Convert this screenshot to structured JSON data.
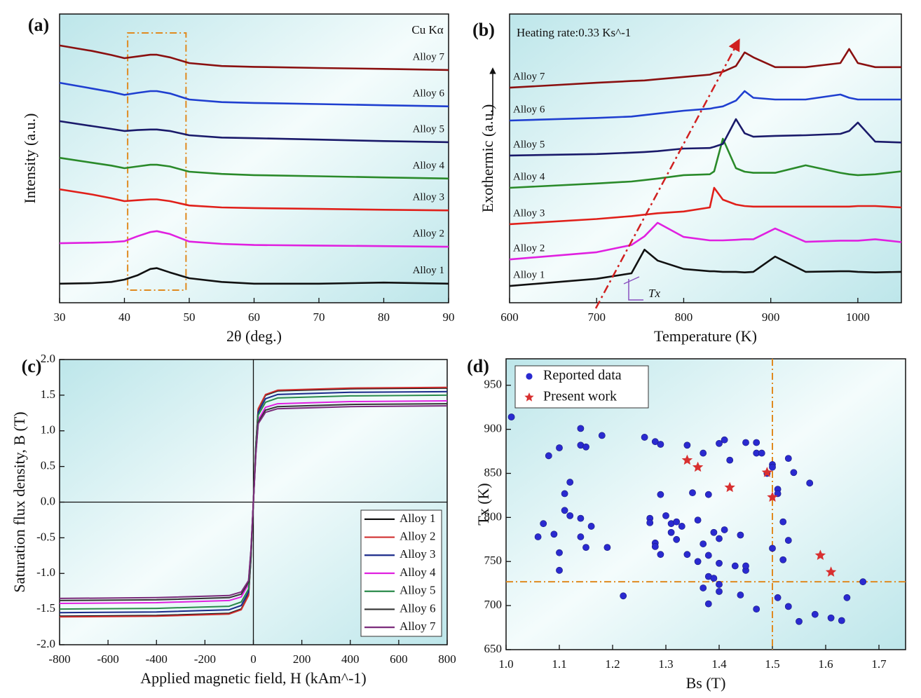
{
  "chart_data": [
    {
      "type": "line",
      "panel": "(a)",
      "xlabel": "2θ (deg.)",
      "ylabel": "Intensity (a.u.)",
      "annotation": "Cu Kα",
      "x": [
        30,
        35,
        38,
        40,
        42,
        44,
        45,
        47,
        50,
        55,
        60,
        70,
        80,
        90
      ],
      "xlim": [
        30,
        90
      ],
      "xticks": [
        30,
        40,
        50,
        60,
        70,
        80,
        90
      ],
      "ylim": [
        0,
        10
      ],
      "highlight_x": [
        40.5,
        49.5
      ],
      "series": [
        {
          "name": "Alloy 1",
          "color": "#111111",
          "values": [
            0.66,
            0.68,
            0.72,
            0.8,
            0.95,
            1.17,
            1.2,
            1.05,
            0.85,
            0.72,
            0.66,
            0.66,
            0.7,
            0.66
          ]
        },
        {
          "name": "Alloy 2",
          "color": "#e020e0",
          "values": [
            2.06,
            2.08,
            2.1,
            2.13,
            2.3,
            2.45,
            2.48,
            2.38,
            2.12,
            2.04,
            2.0,
            1.98,
            1.96,
            1.94
          ]
        },
        {
          "name": "Alloy 3",
          "color": "#e0201a",
          "values": [
            3.93,
            3.75,
            3.62,
            3.52,
            3.55,
            3.58,
            3.58,
            3.52,
            3.37,
            3.3,
            3.28,
            3.25,
            3.22,
            3.2
          ]
        },
        {
          "name": "Alloy 4",
          "color": "#2a8a2a",
          "values": [
            5.02,
            4.85,
            4.75,
            4.66,
            4.72,
            4.78,
            4.78,
            4.72,
            4.54,
            4.46,
            4.42,
            4.38,
            4.34,
            4.3
          ]
        },
        {
          "name": "Alloy 5",
          "color": "#1a1a6a",
          "values": [
            6.29,
            6.12,
            6.02,
            5.95,
            5.98,
            6.0,
            6.0,
            5.95,
            5.8,
            5.72,
            5.7,
            5.65,
            5.6,
            5.56
          ]
        },
        {
          "name": "Alloy 6",
          "color": "#1f3fd0",
          "values": [
            7.62,
            7.42,
            7.3,
            7.2,
            7.27,
            7.33,
            7.33,
            7.25,
            7.04,
            6.95,
            6.92,
            6.88,
            6.84,
            6.8
          ]
        },
        {
          "name": "Alloy 7",
          "color": "#8a1010",
          "values": [
            8.91,
            8.72,
            8.58,
            8.47,
            8.53,
            8.59,
            8.59,
            8.5,
            8.3,
            8.2,
            8.17,
            8.13,
            8.1,
            8.06
          ]
        }
      ]
    },
    {
      "type": "line",
      "panel": "(b)",
      "xlabel": "Temperature (K)",
      "ylabel": "Exothermic (a.u.)",
      "annotation": "Heating rate:0.33 Ks^-1",
      "marker_label": "Tx",
      "x": [
        600,
        700,
        740,
        755,
        770,
        800,
        830,
        835,
        845,
        860,
        870,
        880,
        905,
        940,
        980,
        990,
        1000,
        1020,
        1050
      ],
      "xlim": [
        600,
        1050
      ],
      "xticks": [
        600,
        700,
        800,
        900,
        1000
      ],
      "ylim": [
        0,
        10
      ],
      "series": [
        {
          "name": "Alloy 1",
          "color": "#111111",
          "values": [
            0.58,
            0.83,
            1.02,
            1.84,
            1.46,
            1.17,
            1.09,
            1.09,
            1.07,
            1.07,
            1.05,
            1.07,
            1.6,
            1.07,
            1.09,
            1.09,
            1.07,
            1.05,
            1.07
          ]
        },
        {
          "name": "Alloy 2",
          "color": "#e020e0",
          "values": [
            1.5,
            1.75,
            2.0,
            2.3,
            2.77,
            2.28,
            2.16,
            2.16,
            2.16,
            2.18,
            2.2,
            2.2,
            2.57,
            2.11,
            2.15,
            2.15,
            2.15,
            2.2,
            2.1
          ]
        },
        {
          "name": "Alloy 3",
          "color": "#e0201a",
          "values": [
            2.72,
            2.9,
            3.0,
            3.05,
            3.1,
            3.16,
            3.3,
            3.98,
            3.57,
            3.4,
            3.35,
            3.33,
            3.33,
            3.33,
            3.33,
            3.33,
            3.35,
            3.35,
            3.3
          ]
        },
        {
          "name": "Alloy 4",
          "color": "#2a8a2a",
          "values": [
            3.98,
            4.13,
            4.2,
            4.25,
            4.3,
            4.42,
            4.45,
            4.55,
            5.68,
            4.66,
            4.54,
            4.5,
            4.5,
            4.76,
            4.5,
            4.45,
            4.42,
            4.45,
            4.55
          ]
        },
        {
          "name": "Alloy 5",
          "color": "#1a1a6a",
          "values": [
            5.1,
            5.15,
            5.2,
            5.22,
            5.25,
            5.34,
            5.36,
            5.4,
            5.5,
            6.36,
            5.87,
            5.75,
            5.78,
            5.8,
            5.85,
            5.95,
            6.24,
            5.58,
            5.55
          ]
        },
        {
          "name": "Alloy 6",
          "color": "#1f3fd0",
          "values": [
            6.31,
            6.4,
            6.45,
            6.5,
            6.55,
            6.65,
            6.72,
            6.75,
            6.8,
            7.0,
            7.33,
            7.1,
            7.04,
            7.04,
            7.21,
            7.1,
            7.04,
            7.04,
            7.04
          ]
        },
        {
          "name": "Alloy 7",
          "color": "#8a1010",
          "values": [
            7.45,
            7.62,
            7.68,
            7.7,
            7.74,
            7.82,
            7.9,
            7.95,
            8.0,
            8.2,
            8.67,
            8.5,
            8.16,
            8.16,
            8.3,
            8.79,
            8.3,
            8.16,
            8.16
          ]
        }
      ]
    },
    {
      "type": "line",
      "panel": "(c)",
      "xlabel": "Applied magnetic field, H (kAm^-1)",
      "ylabel": "Saturation flux density, B (T)",
      "zero_lines": true,
      "legend": "lower right",
      "x": [
        -800,
        -400,
        -100,
        -50,
        -20,
        -10,
        0,
        10,
        20,
        50,
        100,
        400,
        800
      ],
      "xlim": [
        -800,
        800
      ],
      "xticks": [
        -800,
        -600,
        -400,
        -200,
        0,
        200,
        400,
        600,
        800
      ],
      "ylim": [
        -2,
        2
      ],
      "yticks": [
        {
          "value": 2,
          "label": "2.0"
        },
        1.5,
        {
          "value": 1,
          "label": "1.0"
        },
        0.5,
        {
          "value": 0,
          "label": "0.0"
        },
        -0.5,
        {
          "value": -1,
          "label": "-1.0"
        },
        -1.5,
        {
          "value": -2,
          "label": "-2.0"
        }
      ],
      "series": [
        {
          "name": "Alloy 1",
          "color": "#111111",
          "values": [
            -1.6,
            -1.59,
            -1.56,
            -1.5,
            -1.3,
            -0.8,
            0,
            0.8,
            1.3,
            1.5,
            1.56,
            1.59,
            1.6
          ]
        },
        {
          "name": "Alloy 2",
          "color": "#d03030",
          "values": [
            -1.61,
            -1.6,
            -1.57,
            -1.51,
            -1.31,
            -0.8,
            0,
            0.8,
            1.31,
            1.51,
            1.57,
            1.6,
            1.61
          ]
        },
        {
          "name": "Alloy 3",
          "color": "#1a2a8a",
          "values": [
            -1.55,
            -1.54,
            -1.51,
            -1.45,
            -1.26,
            -0.78,
            0,
            0.78,
            1.26,
            1.45,
            1.51,
            1.54,
            1.55
          ]
        },
        {
          "name": "Alloy 4",
          "color": "#e020e0",
          "values": [
            -1.42,
            -1.41,
            -1.38,
            -1.33,
            -1.15,
            -0.7,
            0,
            0.7,
            1.15,
            1.33,
            1.38,
            1.41,
            1.42
          ]
        },
        {
          "name": "Alloy 5",
          "color": "#2a8a4a",
          "values": [
            -1.5,
            -1.49,
            -1.46,
            -1.4,
            -1.22,
            -0.75,
            0,
            0.75,
            1.22,
            1.4,
            1.46,
            1.49,
            1.5
          ]
        },
        {
          "name": "Alloy 6",
          "color": "#333333",
          "values": [
            -1.38,
            -1.37,
            -1.34,
            -1.29,
            -1.12,
            -0.69,
            0,
            0.69,
            1.12,
            1.29,
            1.34,
            1.37,
            1.38
          ]
        },
        {
          "name": "Alloy 7",
          "color": "#7a2a7a",
          "values": [
            -1.35,
            -1.34,
            -1.31,
            -1.26,
            -1.1,
            -0.67,
            0,
            0.67,
            1.1,
            1.26,
            1.31,
            1.34,
            1.35
          ]
        }
      ]
    },
    {
      "type": "scatter",
      "panel": "(d)",
      "xlabel": "Bs (T)",
      "ylabel": "Tx (K)",
      "legend": "upper left",
      "ref_x": 1.5,
      "ref_y": 727,
      "xlim": [
        1.0,
        1.75
      ],
      "xticks": [
        {
          "value": 1,
          "label": "1.0"
        },
        1.1,
        1.2,
        1.3,
        1.4,
        1.5,
        1.6,
        1.7
      ],
      "ylim": [
        650,
        980
      ],
      "yticks": [
        650,
        700,
        750,
        800,
        850,
        900,
        950
      ],
      "series": [
        {
          "name": "Reported data",
          "color": "#2a2ad0",
          "marker": "circle",
          "x": [
            1.01,
            1.08,
            1.1,
            1.14,
            1.14,
            1.15,
            1.18,
            1.12,
            1.11,
            1.12,
            1.11,
            1.07,
            1.09,
            1.06,
            1.14,
            1.16,
            1.14,
            1.15,
            1.19,
            1.1,
            1.1,
            1.22,
            1.26,
            1.28,
            1.29,
            1.29,
            1.27,
            1.27,
            1.28,
            1.28,
            1.29,
            1.3,
            1.31,
            1.31,
            1.32,
            1.33,
            1.32,
            1.34,
            1.35,
            1.37,
            1.36,
            1.36,
            1.34,
            1.38,
            1.37,
            1.38,
            1.38,
            1.37,
            1.38,
            1.39,
            1.39,
            1.4,
            1.4,
            1.4,
            1.4,
            1.4,
            1.41,
            1.41,
            1.42,
            1.43,
            1.44,
            1.45,
            1.45,
            1.44,
            1.45,
            1.47,
            1.47,
            1.48,
            1.49,
            1.5,
            1.5,
            1.51,
            1.51,
            1.5,
            1.52,
            1.52,
            1.53,
            1.54,
            1.53,
            1.47,
            1.51,
            1.53,
            1.55,
            1.57,
            1.58,
            1.61,
            1.63,
            1.64,
            1.67
          ],
          "values": [
            914,
            870,
            879,
            901,
            882,
            880,
            893,
            840,
            827,
            802,
            808,
            793,
            781,
            778,
            799,
            790,
            778,
            766,
            766,
            760,
            740,
            711,
            891,
            886,
            883,
            826,
            799,
            794,
            771,
            767,
            758,
            802,
            793,
            783,
            795,
            790,
            775,
            882,
            828,
            873,
            797,
            750,
            758,
            826,
            770,
            757,
            733,
            720,
            702,
            783,
            731,
            776,
            748,
            724,
            716,
            884,
            888,
            786,
            865,
            745,
            780,
            740,
            745,
            712,
            885,
            885,
            873,
            873,
            850,
            860,
            857,
            832,
            827,
            765,
            795,
            752,
            867,
            851,
            774,
            696,
            709,
            699,
            682,
            839,
            690,
            686,
            683,
            709,
            727
          ]
        },
        {
          "name": "Present work",
          "color": "#d83030",
          "marker": "star",
          "x": [
            1.34,
            1.36,
            1.42,
            1.49,
            1.5,
            1.59,
            1.61
          ],
          "values": [
            865,
            857,
            834,
            851,
            823,
            757,
            738
          ]
        }
      ]
    }
  ]
}
